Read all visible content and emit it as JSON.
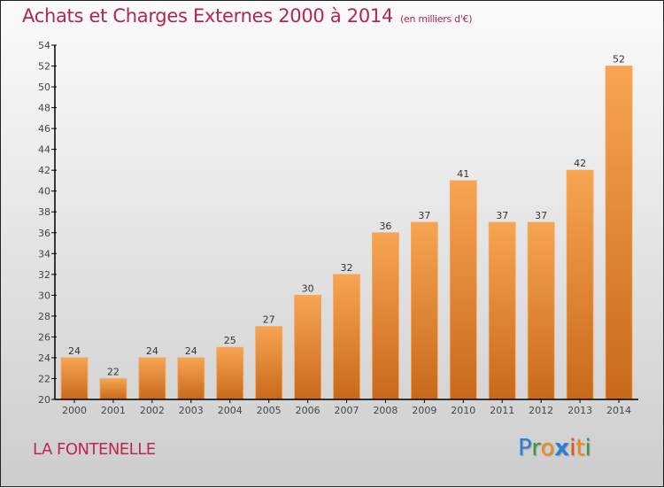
{
  "header": {
    "title": "Achats et Charges Externes 2000 à 2014",
    "unit": "(en milliers d'€)"
  },
  "footer": {
    "commune": "LA FONTENELLE",
    "logo": {
      "letters": [
        {
          "char": "P",
          "color": "#2a7fd4"
        },
        {
          "char": "r",
          "color": "#3a9a3a"
        },
        {
          "char": "o",
          "color": "#f08a1c"
        },
        {
          "char": "x",
          "color": "#2a7fd4"
        },
        {
          "char": "i",
          "color": "#e8501c"
        },
        {
          "char": "t",
          "color": "#f08a1c"
        },
        {
          "char": "i",
          "color": "#3a9a3a"
        }
      ]
    }
  },
  "colors": {
    "title": "#b5254f",
    "bar_top": "#f7a552",
    "bar_bottom": "#c8691a",
    "axis": "#000000"
  },
  "chart_data": {
    "type": "bar",
    "title": "Achats et Charges Externes 2000 à 2014 (en milliers d'€)",
    "xlabel": "",
    "ylabel": "",
    "categories": [
      "2000",
      "2001",
      "2002",
      "2003",
      "2004",
      "2005",
      "2006",
      "2007",
      "2008",
      "2009",
      "2010",
      "2011",
      "2012",
      "2013",
      "2014"
    ],
    "values": [
      24,
      22,
      24,
      24,
      25,
      27,
      30,
      32,
      36,
      37,
      41,
      37,
      37,
      42,
      52
    ],
    "ylim": [
      20,
      54
    ],
    "yticks": [
      20,
      22,
      24,
      26,
      28,
      30,
      32,
      34,
      36,
      38,
      40,
      42,
      44,
      46,
      48,
      50,
      52,
      54
    ],
    "grid": false,
    "legend": "none",
    "data_labels": true
  }
}
